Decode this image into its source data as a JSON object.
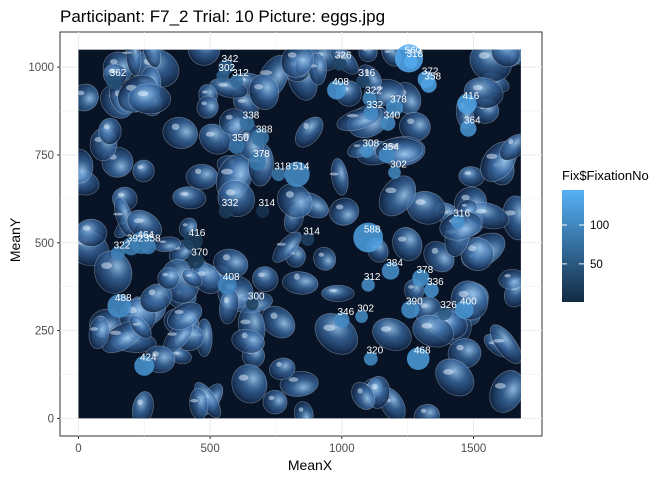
{
  "chart_data": {
    "type": "scatter",
    "title": "Participant: F7_2 Trial: 10 Picture: eggs.jpg",
    "xlabel": "MeanX",
    "ylabel": "MeanY",
    "xlim": [
      -70,
      1760
    ],
    "ylim": [
      -50,
      1100
    ],
    "xticks": [
      0,
      500,
      1000,
      1500
    ],
    "yticks": [
      0,
      250,
      500,
      750,
      1000
    ],
    "grid": true,
    "background_image": "eggs.jpg (blue-toned photo of many translucent eggs), spanning x 0–1680, y 0–1050",
    "legend": {
      "title": "Fix$FixationNo",
      "placement": "right",
      "ticks": [
        50,
        100
      ],
      "range": [
        1,
        145
      ],
      "low_color": "#132B43",
      "high_color": "#56B1F7"
    },
    "points": [
      {
        "x": 1255,
        "y": 1025,
        "label": "560",
        "fix": 140
      },
      {
        "x": 1262,
        "y": 1015,
        "label": "318",
        "fix": 138
      },
      {
        "x": 1320,
        "y": 965,
        "label": "372",
        "fix": 128
      },
      {
        "x": 1330,
        "y": 950,
        "label": "358",
        "fix": 130
      },
      {
        "x": 1475,
        "y": 895,
        "label": "416",
        "fix": 132
      },
      {
        "x": 1480,
        "y": 825,
        "label": "364",
        "fix": 118
      },
      {
        "x": 135,
        "y": 960,
        "label": "362",
        "fix": 40
      },
      {
        "x": 560,
        "y": 1000,
        "label": "342",
        "fix": 60
      },
      {
        "x": 548,
        "y": 975,
        "label": "302",
        "fix": 62
      },
      {
        "x": 600,
        "y": 960,
        "label": "312",
        "fix": 70
      },
      {
        "x": 990,
        "y": 1010,
        "label": "326",
        "fix": 30
      },
      {
        "x": 1080,
        "y": 960,
        "label": "316",
        "fix": 32
      },
      {
        "x": 980,
        "y": 935,
        "label": "408",
        "fix": 120
      },
      {
        "x": 1105,
        "y": 910,
        "label": "322",
        "fix": 100
      },
      {
        "x": 1200,
        "y": 885,
        "label": "378",
        "fix": 108
      },
      {
        "x": 1110,
        "y": 870,
        "label": "332",
        "fix": 106
      },
      {
        "x": 1175,
        "y": 840,
        "label": "340",
        "fix": 105
      },
      {
        "x": 640,
        "y": 840,
        "label": "338",
        "fix": 78
      },
      {
        "x": 690,
        "y": 800,
        "label": "388",
        "fix": 80
      },
      {
        "x": 600,
        "y": 775,
        "label": "350",
        "fix": 82
      },
      {
        "x": 680,
        "y": 730,
        "label": "378",
        "fix": 84
      },
      {
        "x": 760,
        "y": 695,
        "label": "318",
        "fix": 86
      },
      {
        "x": 830,
        "y": 695,
        "label": "514",
        "fix": 110
      },
      {
        "x": 1095,
        "y": 760,
        "label": "308",
        "fix": 108
      },
      {
        "x": 1170,
        "y": 750,
        "label": "354",
        "fix": 104
      },
      {
        "x": 1200,
        "y": 700,
        "label": "302",
        "fix": 102
      },
      {
        "x": 560,
        "y": 590,
        "label": "332",
        "fix": 18
      },
      {
        "x": 700,
        "y": 590,
        "label": "314",
        "fix": 12
      },
      {
        "x": 1440,
        "y": 560,
        "label": "316",
        "fix": 112
      },
      {
        "x": 150,
        "y": 470,
        "label": "322",
        "fix": 96
      },
      {
        "x": 200,
        "y": 490,
        "label": "392",
        "fix": 94
      },
      {
        "x": 240,
        "y": 500,
        "label": "464",
        "fix": 92
      },
      {
        "x": 265,
        "y": 490,
        "label": "358",
        "fix": 90
      },
      {
        "x": 435,
        "y": 505,
        "label": "416",
        "fix": 20
      },
      {
        "x": 445,
        "y": 450,
        "label": "370",
        "fix": 16
      },
      {
        "x": 870,
        "y": 510,
        "label": "314",
        "fix": 25
      },
      {
        "x": 1100,
        "y": 515,
        "label": "588",
        "fix": 128
      },
      {
        "x": 1185,
        "y": 420,
        "label": "384",
        "fix": 112
      },
      {
        "x": 1100,
        "y": 380,
        "label": "312",
        "fix": 110
      },
      {
        "x": 1300,
        "y": 400,
        "label": "378",
        "fix": 114
      },
      {
        "x": 1340,
        "y": 365,
        "label": "336",
        "fix": 116
      },
      {
        "x": 1465,
        "y": 310,
        "label": "400",
        "fix": 118
      },
      {
        "x": 1260,
        "y": 310,
        "label": "390",
        "fix": 112
      },
      {
        "x": 1390,
        "y": 300,
        "label": "326",
        "fix": 50
      },
      {
        "x": 1075,
        "y": 290,
        "label": "302",
        "fix": 106
      },
      {
        "x": 1000,
        "y": 280,
        "label": "346",
        "fix": 104
      },
      {
        "x": 565,
        "y": 380,
        "label": "408",
        "fix": 100
      },
      {
        "x": 660,
        "y": 325,
        "label": "300",
        "fix": 22
      },
      {
        "x": 155,
        "y": 320,
        "label": "488",
        "fix": 110
      },
      {
        "x": 250,
        "y": 150,
        "label": "424",
        "fix": 118
      },
      {
        "x": 1110,
        "y": 170,
        "label": "320",
        "fix": 108
      },
      {
        "x": 1290,
        "y": 170,
        "label": "468",
        "fix": 124
      }
    ]
  }
}
